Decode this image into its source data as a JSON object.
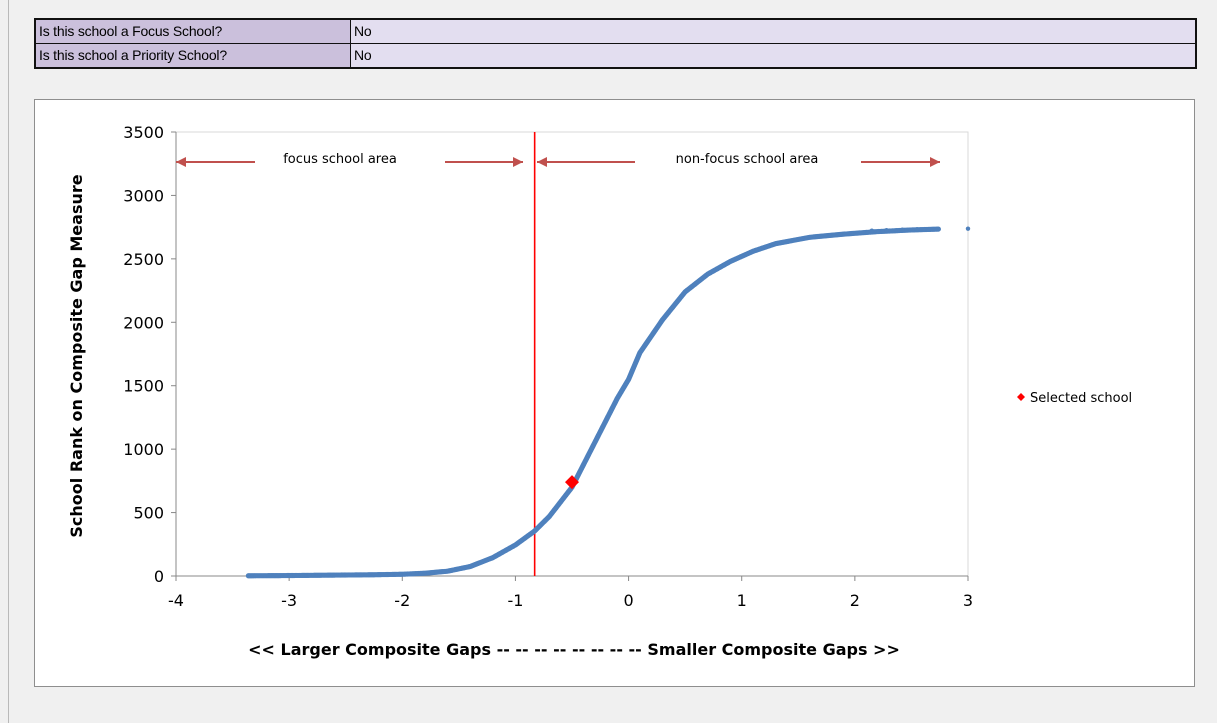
{
  "status": {
    "rows": [
      {
        "question": "Is this school a Focus School?",
        "answer": "No"
      },
      {
        "question": "Is this school a Priority School?",
        "answer": "No"
      }
    ]
  },
  "chart_data": {
    "type": "scatter",
    "title": "",
    "xlabel": "<< Larger Composite Gaps -- -- -- -- -- -- -- -- Smaller Composite Gaps >>",
    "ylabel": "School Rank on Composite Gap Measure",
    "xlim": [
      -4,
      3
    ],
    "ylim": [
      0,
      3500
    ],
    "x_ticks": [
      "-4",
      "-3",
      "-2",
      "-1",
      "0",
      "1",
      "2",
      "3"
    ],
    "y_ticks": [
      "0",
      "500",
      "1000",
      "1500",
      "2000",
      "2500",
      "3000",
      "3500"
    ],
    "grid": false,
    "cutoff_line": {
      "x": -0.83,
      "color": "#ff0000"
    },
    "area_labels": {
      "focus": "focus school area",
      "non_focus": "non-focus school area"
    },
    "series": [
      {
        "name": "",
        "color": "#4f81bd",
        "curve": [
          [
            -3.36,
            2
          ],
          [
            -3.1,
            3
          ],
          [
            -2.85,
            5
          ],
          [
            -2.5,
            8
          ],
          [
            -2.25,
            10
          ],
          [
            -2.0,
            14
          ],
          [
            -1.8,
            22
          ],
          [
            -1.6,
            38
          ],
          [
            -1.4,
            75
          ],
          [
            -1.2,
            145
          ],
          [
            -1.0,
            245
          ],
          [
            -0.83,
            355
          ],
          [
            -0.7,
            470
          ],
          [
            -0.5,
            700
          ],
          [
            -0.3,
            1050
          ],
          [
            -0.1,
            1400
          ],
          [
            0.0,
            1550
          ],
          [
            0.1,
            1760
          ],
          [
            0.3,
            2020
          ],
          [
            0.5,
            2240
          ],
          [
            0.7,
            2380
          ],
          [
            0.9,
            2480
          ],
          [
            1.1,
            2560
          ],
          [
            1.3,
            2620
          ],
          [
            1.6,
            2670
          ],
          [
            1.9,
            2695
          ],
          [
            2.2,
            2715
          ],
          [
            2.5,
            2728
          ],
          [
            2.75,
            2735
          ]
        ],
        "outliers": [
          [
            -3.36,
            1
          ],
          [
            -3.18,
            2
          ],
          [
            -2.99,
            2
          ],
          [
            -2.88,
            3
          ],
          [
            -2.82,
            6
          ],
          [
            -2.55,
            5
          ],
          [
            -2.42,
            7
          ],
          [
            -2.3,
            8
          ],
          [
            -2.23,
            9
          ],
          [
            -2.15,
            11
          ],
          [
            -2.05,
            12
          ],
          [
            -1.98,
            14
          ],
          [
            -1.9,
            16
          ],
          [
            2.15,
            2722
          ],
          [
            2.28,
            2726
          ],
          [
            2.42,
            2730
          ],
          [
            2.55,
            2733
          ],
          [
            2.68,
            2735
          ],
          [
            3.0,
            2738
          ]
        ]
      },
      {
        "name": "Selected school",
        "color": "#ff0000",
        "points": [
          [
            -0.5,
            740
          ]
        ]
      }
    ],
    "legend": {
      "position": "right"
    }
  }
}
